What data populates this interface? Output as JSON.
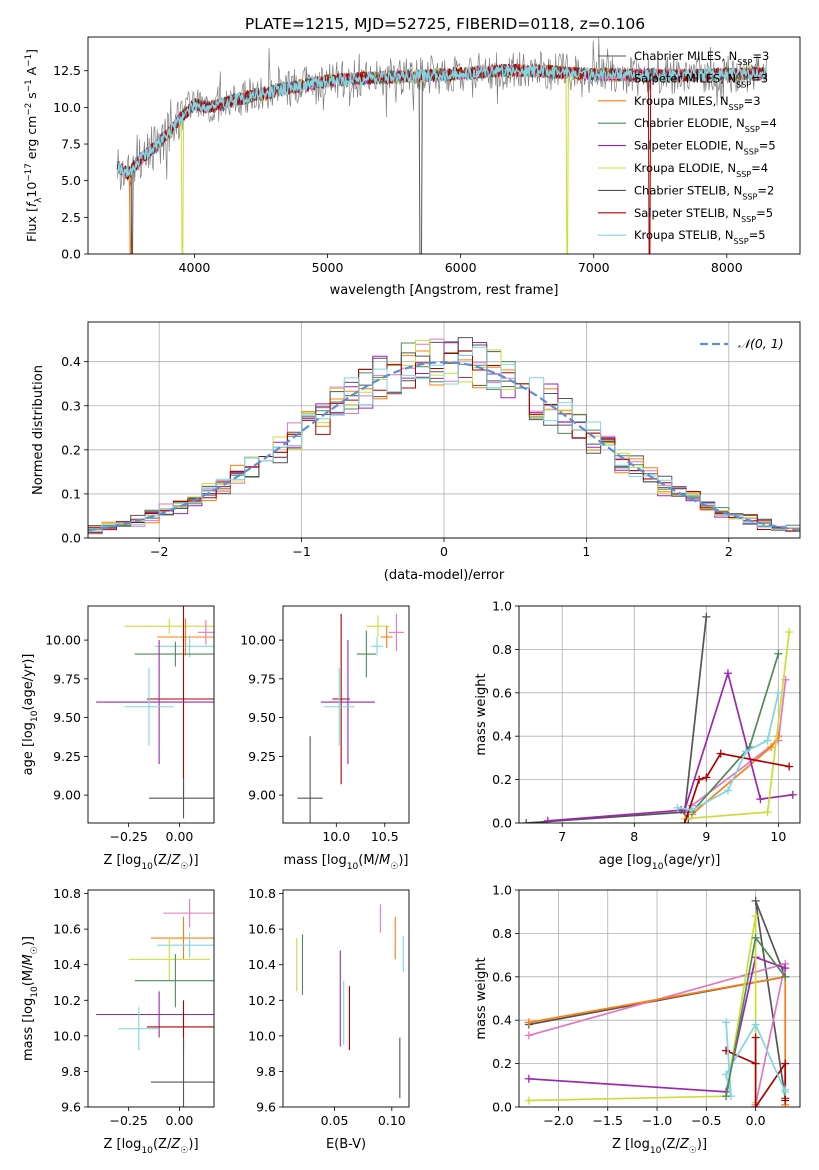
{
  "figure": {
    "title": "PLATE=1215, MJD=52725, FIBERID=0118, z=0.106"
  },
  "colors": {
    "Chabrier MILES": "#555555",
    "Salpeter MILES": "#e377c2",
    "Kroupa MILES": "#ff7f0e",
    "Chabrier ELODIE": "#4f8a5a",
    "Salpeter ELODIE": "#9b27b0",
    "Kroupa ELODIE": "#cddc39",
    "Chabrier STELIB": "#555555",
    "Salpeter STELIB": "#b00000",
    "Kroupa STELIB": "#7fd6e0",
    "data": "#7f7f7f",
    "gauss": "#5b8fd6"
  },
  "chart_data": [
    {
      "id": "spectrum",
      "type": "line",
      "title": "PLATE=1215, MJD=52725, FIBERID=0118, z=0.106",
      "xlabel": "wavelength [Angstrom, rest frame]",
      "ylabel": "Flux [f_λ 10^-17 erg cm^-2 s^-1 A^-1]",
      "xlim": [
        3200,
        8550
      ],
      "ylim": [
        0,
        14.8
      ],
      "xticks": [
        4000,
        5000,
        6000,
        7000,
        8000
      ],
      "yticks": [
        0.0,
        2.5,
        5.0,
        7.5,
        10.0,
        12.5
      ],
      "xticklabels": [
        "4000",
        "5000",
        "6000",
        "7000",
        "8000"
      ],
      "yticklabels": [
        "0.0",
        "2.5",
        "5.0",
        "7.5",
        "10.0",
        "12.5"
      ],
      "legend": "upper right",
      "legend_entries": [
        "Chabrier MILES, N_SSP=3",
        "Salpeter MILES, N_SSP=3",
        "Kroupa MILES, N_SSP=3",
        "Chabrier ELODIE, N_SSP=4",
        "Salpeter ELODIE, N_SSP=5",
        "Kroupa ELODIE, N_SSP=4",
        "Chabrier STELIB, N_SSP=2",
        "Salpeter STELIB, N_SSP=5",
        "Kroupa STELIB, N_SSP=5"
      ],
      "continuum_x": [
        3420,
        3500,
        3600,
        3700,
        3800,
        3900,
        4000,
        4100,
        4200,
        4300,
        4500,
        4700,
        5000,
        5300,
        5600,
        6000,
        6300,
        6600,
        6900,
        7200,
        7500,
        7800,
        8100,
        8300
      ],
      "continuum_y": [
        6.0,
        5.5,
        6.5,
        7.3,
        8.2,
        9.3,
        10.2,
        10.0,
        10.2,
        10.5,
        10.9,
        11.3,
        11.8,
        12.0,
        12.1,
        12.3,
        12.5,
        12.5,
        12.3,
        12.2,
        12.2,
        12.2,
        12.3,
        12.3
      ],
      "model_dips": [
        {
          "model": "Kroupa MILES",
          "x": 3520
        },
        {
          "model": "Chabrier MILES",
          "x": 3530
        },
        {
          "model": "Kroupa ELODIE",
          "x": 3910
        },
        {
          "model": "Chabrier STELIB",
          "x": 5700
        },
        {
          "model": "Kroupa ELODIE",
          "x": 6800
        },
        {
          "model": "Salpeter STELIB",
          "x": 7420
        }
      ]
    },
    {
      "id": "residual_hist",
      "type": "histogram",
      "xlabel": "(data-model)/error",
      "ylabel": "Normed distribution",
      "xlim": [
        -2.5,
        2.5
      ],
      "ylim": [
        0,
        0.49
      ],
      "xticks": [
        -2,
        -1,
        0,
        1,
        2
      ],
      "yticks": [
        0.0,
        0.1,
        0.2,
        0.3,
        0.4
      ],
      "xticklabels": [
        "−2",
        "−1",
        "0",
        "1",
        "2"
      ],
      "yticklabels": [
        "0.0",
        "0.1",
        "0.2",
        "0.3",
        "0.4"
      ],
      "grid": true,
      "legend": "upper right",
      "gauss_label": "𝒩(0, 1)",
      "bin_width": 0.1,
      "seed": 7
    },
    {
      "id": "age_vs_Z",
      "type": "errorbar",
      "xlabel": "Z [log10(Z/Z☉)]",
      "ylabel": "age [log10(age/yr)]",
      "xlim": [
        -0.45,
        0.17
      ],
      "ylim": [
        8.82,
        10.22
      ],
      "xticks": [
        -0.25,
        0.0
      ],
      "yticks": [
        9.0,
        9.25,
        9.5,
        9.75,
        10.0
      ],
      "xticklabels": [
        "−0.25",
        "0.00"
      ],
      "yticklabels": [
        "9.00",
        "9.25",
        "9.50",
        "9.75",
        "10.00"
      ],
      "points": [
        {
          "model": "Kroupa ELODIE",
          "x": -0.05,
          "xerr": 0.22,
          "y": 10.09,
          "yerr": 0.05
        },
        {
          "model": "Salpeter MILES",
          "x": 0.13,
          "xerr": 0.04,
          "y": 10.05,
          "yerr": 0.08
        },
        {
          "model": "Kroupa MILES",
          "x": 0.03,
          "xerr": 0.14,
          "y": 10.02,
          "yerr": 0.12
        },
        {
          "model": "Kroupa STELIB",
          "x": 0.05,
          "xerr": 0.17,
          "y": 9.96,
          "yerr": 0.07
        },
        {
          "model": "Chabrier ELODIE",
          "x": -0.02,
          "xerr": 0.2,
          "y": 9.91,
          "yerr": 0.08
        },
        {
          "model": "Salpeter STELIB",
          "x": 0.02,
          "xerr": 0.18,
          "y": 9.62,
          "yerr": 0.65
        },
        {
          "model": "Salpeter ELODIE",
          "x": -0.1,
          "xerr": 0.31,
          "y": 9.6,
          "yerr": 0.4
        },
        {
          "model": "Kroupa STELIB",
          "x": -0.15,
          "xerr": 0.12,
          "y": 9.57,
          "yerr": 0.25
        },
        {
          "model": "Chabrier STELIB",
          "x": 0.02,
          "xerr": 0.17,
          "y": 8.98,
          "yerr": 0.13
        }
      ]
    },
    {
      "id": "age_vs_mass",
      "type": "errorbar",
      "xlabel": "mass [log10(M/M☉)]",
      "ylabel": "",
      "xlim": [
        9.45,
        10.75
      ],
      "ylim": [
        8.82,
        10.22
      ],
      "xticks": [
        10.0,
        10.5
      ],
      "yticks": [
        9.0,
        9.25,
        9.5,
        9.75,
        10.0
      ],
      "xticklabels": [
        "10.0",
        "10.5"
      ],
      "yticklabels": [
        "9.00",
        "9.25",
        "9.50",
        "9.75",
        "10.00"
      ],
      "points": [
        {
          "model": "Kroupa ELODIE",
          "x": 10.43,
          "xerr": 0.12,
          "y": 10.09,
          "yerr": 0.07
        },
        {
          "model": "Salpeter MILES",
          "x": 10.62,
          "xerr": 0.08,
          "y": 10.05,
          "yerr": 0.12
        },
        {
          "model": "Kroupa MILES",
          "x": 10.52,
          "xerr": 0.06,
          "y": 10.02,
          "yerr": 0.07
        },
        {
          "model": "Kroupa STELIB",
          "x": 10.42,
          "xerr": 0.06,
          "y": 9.96,
          "yerr": 0.06
        },
        {
          "model": "Chabrier ELODIE",
          "x": 10.31,
          "xerr": 0.1,
          "y": 9.91,
          "yerr": 0.15
        },
        {
          "model": "Salpeter STELIB",
          "x": 10.05,
          "xerr": 0.09,
          "y": 9.62,
          "yerr": 0.55
        },
        {
          "model": "Salpeter ELODIE",
          "x": 10.12,
          "xerr": 0.28,
          "y": 9.6,
          "yerr": 0.4
        },
        {
          "model": "Kroupa STELIB",
          "x": 10.03,
          "xerr": 0.16,
          "y": 9.57,
          "yerr": 0.25
        },
        {
          "model": "Chabrier STELIB",
          "x": 9.73,
          "xerr": 0.13,
          "y": 8.98,
          "yerr": 0.4
        }
      ]
    },
    {
      "id": "massweight_vs_age",
      "type": "line",
      "xlabel": "age [log10(age/yr)]",
      "ylabel": "mass weight",
      "xlim": [
        6.4,
        10.3
      ],
      "ylim": [
        0,
        1.0
      ],
      "xticks": [
        7,
        8,
        9,
        10
      ],
      "yticks": [
        0.0,
        0.2,
        0.4,
        0.6,
        0.8,
        1.0
      ],
      "xticklabels": [
        "7",
        "8",
        "9",
        "10"
      ],
      "yticklabels": [
        "0.0",
        "0.2",
        "0.4",
        "0.6",
        "0.8",
        "1.0"
      ],
      "grid": true,
      "series": [
        {
          "model": "Chabrier MILES",
          "x": [
            6.5,
            8.7,
            9.0
          ],
          "y": [
            0.0,
            0.05,
            0.95
          ]
        },
        {
          "model": "Chabrier STELIB",
          "x": [
            8.65,
            8.75
          ],
          "y": [
            0.06,
            0.02
          ]
        },
        {
          "model": "Salpeter MILES",
          "x": [
            8.8,
            10.0,
            10.1
          ],
          "y": [
            0.08,
            0.38,
            0.66
          ]
        },
        {
          "model": "Kroupa MILES",
          "x": [
            8.8,
            9.9,
            10.0
          ],
          "y": [
            0.04,
            0.35,
            0.4
          ]
        },
        {
          "model": "Chabrier ELODIE",
          "x": [
            8.8,
            9.6,
            10.0
          ],
          "y": [
            0.05,
            0.35,
            0.78
          ]
        },
        {
          "model": "Salpeter ELODIE",
          "x": [
            6.8,
            8.7,
            9.3,
            9.75,
            10.2
          ],
          "y": [
            0.01,
            0.06,
            0.69,
            0.11,
            0.13
          ]
        },
        {
          "model": "Kroupa ELODIE",
          "x": [
            8.7,
            9.85,
            10.15
          ],
          "y": [
            0.02,
            0.05,
            0.88
          ]
        },
        {
          "model": "Salpeter STELIB",
          "x": [
            8.7,
            8.9,
            9.0,
            9.2,
            10.15
          ],
          "y": [
            0.0,
            0.2,
            0.21,
            0.32,
            0.26
          ]
        },
        {
          "model": "Kroupa STELIB",
          "x": [
            8.6,
            8.8,
            9.3,
            9.55,
            9.85,
            10.0
          ],
          "y": [
            0.07,
            0.06,
            0.15,
            0.33,
            0.38,
            0.6
          ]
        }
      ]
    },
    {
      "id": "mass_vs_Z",
      "type": "errorbar",
      "xlabel": "Z [log10(Z/Z☉)]",
      "ylabel": "mass [log10(M/M☉)]",
      "xlim": [
        -0.45,
        0.17
      ],
      "ylim": [
        9.6,
        10.82
      ],
      "xticks": [
        -0.25,
        0.0
      ],
      "yticks": [
        9.6,
        9.8,
        10.0,
        10.2,
        10.4,
        10.6,
        10.8
      ],
      "xticklabels": [
        "−0.25",
        "0.00"
      ],
      "yticklabels": [
        "9.6",
        "9.8",
        "10.0",
        "10.2",
        "10.4",
        "10.6",
        "10.8"
      ],
      "points": [
        {
          "model": "Salpeter MILES",
          "x": 0.05,
          "xerr": 0.13,
          "y": 10.69,
          "yerr": 0.08
        },
        {
          "model": "Kroupa MILES",
          "x": 0.02,
          "xerr": 0.16,
          "y": 10.55,
          "yerr": 0.12
        },
        {
          "model": "Kroupa STELIB",
          "x": 0.05,
          "xerr": 0.16,
          "y": 10.51,
          "yerr": 0.07
        },
        {
          "model": "Kroupa ELODIE",
          "x": -0.05,
          "xerr": 0.2,
          "y": 10.43,
          "yerr": 0.12
        },
        {
          "model": "Chabrier ELODIE",
          "x": -0.02,
          "xerr": 0.2,
          "y": 10.31,
          "yerr": 0.15
        },
        {
          "model": "Salpeter ELODIE",
          "x": -0.1,
          "xerr": 0.31,
          "y": 10.12,
          "yerr": 0.13
        },
        {
          "model": "Salpeter STELIB",
          "x": 0.02,
          "xerr": 0.18,
          "y": 10.05,
          "yerr": 0.15
        },
        {
          "model": "Kroupa STELIB",
          "x": -0.2,
          "xerr": 0.1,
          "y": 10.04,
          "yerr": 0.12
        },
        {
          "model": "Chabrier STELIB",
          "x": 0.02,
          "xerr": 0.16,
          "y": 9.74,
          "yerr": 0.25
        }
      ]
    },
    {
      "id": "mass_vs_EBV",
      "type": "errorbar",
      "xlabel": "E(B-V)",
      "ylabel": "",
      "xlim": [
        0.005,
        0.115
      ],
      "ylim": [
        9.6,
        10.82
      ],
      "xticks": [
        0.05,
        0.1
      ],
      "yticks": [
        9.6,
        9.8,
        10.0,
        10.2,
        10.4,
        10.6,
        10.8
      ],
      "xticklabels": [
        "0.05",
        "0.10"
      ],
      "yticklabels": [
        "9.6",
        "9.8",
        "10.0",
        "10.2",
        "10.4",
        "10.6",
        "10.8"
      ],
      "points": [
        {
          "model": "Salpeter MILES",
          "x": 0.09,
          "y": 10.66,
          "yerr": 0.08
        },
        {
          "model": "Kroupa MILES",
          "x": 0.103,
          "y": 10.55,
          "yerr": 0.12
        },
        {
          "model": "Kroupa STELIB",
          "x": 0.11,
          "y": 10.46,
          "yerr": 0.1
        },
        {
          "model": "Kroupa ELODIE",
          "x": 0.017,
          "y": 10.4,
          "yerr": 0.15
        },
        {
          "model": "Chabrier ELODIE",
          "x": 0.022,
          "y": 10.4,
          "yerr": 0.17
        },
        {
          "model": "Salpeter ELODIE",
          "x": 0.055,
          "y": 10.21,
          "yerr": 0.27
        },
        {
          "model": "Kroupa STELIB",
          "x": 0.058,
          "y": 10.13,
          "yerr": 0.18
        },
        {
          "model": "Salpeter STELIB",
          "x": 0.063,
          "y": 10.1,
          "yerr": 0.18
        },
        {
          "model": "Chabrier STELIB",
          "x": 0.107,
          "y": 9.82,
          "yerr": 0.17
        }
      ]
    },
    {
      "id": "massweight_vs_Z",
      "type": "line",
      "xlabel": "Z [log10(Z/Z☉)]",
      "ylabel": "mass weight",
      "xlim": [
        -2.4,
        0.45
      ],
      "ylim": [
        0,
        1.0
      ],
      "xticks": [
        -2.0,
        -1.5,
        -1.0,
        -0.5,
        0.0
      ],
      "yticks": [
        0.0,
        0.2,
        0.4,
        0.6,
        0.8,
        1.0
      ],
      "xticklabels": [
        "−2.0",
        "−1.5",
        "−1.0",
        "−0.5",
        "0.0"
      ],
      "yticklabels": [
        "0.0",
        "0.2",
        "0.4",
        "0.6",
        "0.8",
        "1.0"
      ],
      "grid": true,
      "series": [
        {
          "model": "Chabrier MILES",
          "x": [
            -2.3,
            0.3,
            0.0,
            0.3
          ],
          "y": [
            0.38,
            0.6,
            0.95,
            0.04
          ]
        },
        {
          "model": "Salpeter MILES",
          "x": [
            -2.3,
            0.3,
            0.0
          ],
          "y": [
            0.33,
            0.66,
            0.01
          ]
        },
        {
          "model": "Kroupa MILES",
          "x": [
            -2.3,
            0.3,
            0.3
          ],
          "y": [
            0.39,
            0.6,
            0.01
          ]
        },
        {
          "model": "Salpeter ELODIE",
          "x": [
            -2.3,
            -0.3,
            0.0,
            0.3
          ],
          "y": [
            0.13,
            0.07,
            0.69,
            0.64
          ]
        },
        {
          "model": "Kroupa ELODIE",
          "x": [
            -2.3,
            -0.3,
            0.0,
            0.0
          ],
          "y": [
            0.03,
            0.05,
            0.88,
            0.02
          ]
        },
        {
          "model": "Salpeter STELIB",
          "x": [
            -0.3,
            0.0,
            0.0,
            0.0,
            0.3,
            0.3
          ],
          "y": [
            0.26,
            0.2,
            0.32,
            0.0,
            0.2,
            0.03
          ]
        },
        {
          "model": "Kroupa STELIB",
          "x": [
            -0.3,
            -0.25,
            -0.3,
            0.0,
            0.3,
            0.3
          ],
          "y": [
            0.39,
            0.05,
            0.15,
            0.38,
            0.07,
            0.08
          ]
        },
        {
          "model": "Chabrier ELODIE",
          "x": [
            -0.3,
            0.0,
            0.3
          ],
          "y": [
            0.05,
            0.78,
            0.6
          ]
        }
      ]
    }
  ]
}
